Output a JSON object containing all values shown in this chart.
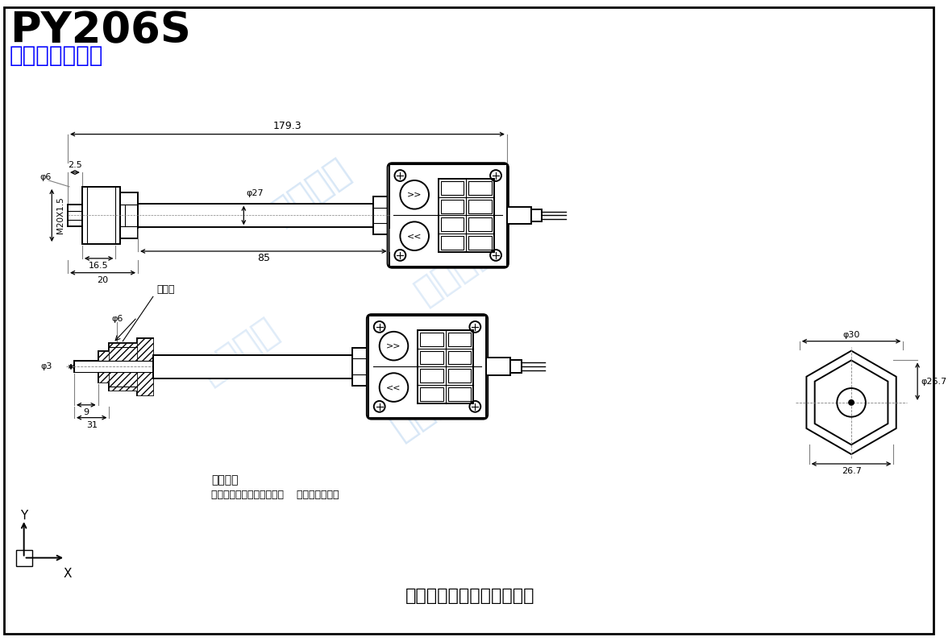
{
  "title": "PY206S",
  "subtitle": "数显压力变送器",
  "bg_color": "#ffffff",
  "line_color": "#000000",
  "blue_color": "#0000ff",
  "watermark_color": "#b8d4f0",
  "watermark_text": "一众传感",
  "company": "佛山一众传感仪器有限公司",
  "wiring_title": "接线说明",
  "wiring_text": "电流输出：红色线：电源正    黑色线：输出正",
  "dim_179": "179.3",
  "dim_27": "φ27",
  "dim_M20": "M20X1.5",
  "dim_6": "φ6",
  "dim_25": "2.5",
  "dim_165": "16.5",
  "dim_20": "20",
  "dim_85": "85",
  "dim_phi30": "φ30",
  "dim_phi267a": "φ26.7",
  "dim_267": "26.7",
  "dim_phi6": "φ6",
  "dim_phi3": "φ3",
  "dim_9": "9",
  "dim_31": "31",
  "dim_yiyakong": "引压孔"
}
